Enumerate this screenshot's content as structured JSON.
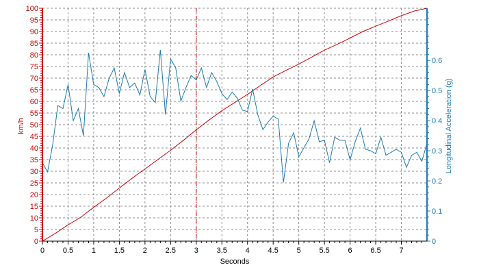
{
  "chart_data": {
    "type": "line",
    "xlabel": "Seconds",
    "ylabel_left": "km/h",
    "ylabel_right": "Longitudinal Acceleration (g)",
    "xlim": [
      0,
      7.5
    ],
    "ylim_left": [
      0,
      100
    ],
    "ylim_right": [
      0,
      0.7733
    ],
    "grid": true,
    "marker_x": 3,
    "x_ticks": [
      "0",
      "0.5",
      "1",
      "1.5",
      "2",
      "2.5",
      "3",
      "3.5",
      "4",
      "4.5",
      "5",
      "5.5",
      "6",
      "6.5",
      "7"
    ],
    "y_ticks_left": [
      "0",
      "5",
      "10",
      "15",
      "20",
      "25",
      "30",
      "35",
      "40",
      "45",
      "50",
      "55",
      "60",
      "65",
      "70",
      "75",
      "80",
      "85",
      "90",
      "95",
      "100"
    ],
    "y_ticks_right": [
      "0",
      "0.1",
      "0.2",
      "0.3",
      "0.4",
      "0.5",
      "0.6"
    ],
    "colors": {
      "left_axis": "#cc0000",
      "right_axis": "#1a7ab0",
      "speed_line": "#cc0000",
      "accel_line": "#1a7ab0",
      "grid": "#8c8c8c",
      "marker": "#cc0000"
    },
    "series": [
      {
        "axis": "left",
        "x": [
          0,
          0.25,
          0.5,
          0.75,
          1,
          1.25,
          1.5,
          1.75,
          2,
          2.25,
          2.5,
          2.75,
          3,
          3.25,
          3.5,
          3.75,
          4,
          4.25,
          4.5,
          4.75,
          5,
          5.25,
          5.5,
          5.75,
          6,
          6.25,
          6.5,
          6.75,
          7,
          7.25,
          7.5
        ],
        "values": [
          0,
          3.3,
          7,
          10.3,
          14.5,
          18.5,
          22.8,
          27,
          31,
          35,
          39,
          43.3,
          47.8,
          52,
          56,
          59.5,
          63,
          66.8,
          70.5,
          73.3,
          76,
          79,
          82,
          84.5,
          87.2,
          90,
          92.3,
          94.5,
          96.8,
          98.8,
          100.5
        ]
      },
      {
        "axis": "right",
        "x": [
          0,
          0.1,
          0.2,
          0.3,
          0.4,
          0.5,
          0.6,
          0.7,
          0.8,
          0.9,
          1.0,
          1.1,
          1.2,
          1.3,
          1.4,
          1.5,
          1.6,
          1.7,
          1.8,
          1.9,
          2.0,
          2.1,
          2.2,
          2.3,
          2.4,
          2.5,
          2.6,
          2.7,
          2.8,
          2.9,
          3.0,
          3.1,
          3.2,
          3.3,
          3.4,
          3.5,
          3.6,
          3.7,
          3.8,
          3.9,
          4.0,
          4.1,
          4.2,
          4.3,
          4.4,
          4.5,
          4.6,
          4.7,
          4.8,
          4.9,
          5.0,
          5.1,
          5.2,
          5.3,
          5.4,
          5.5,
          5.6,
          5.7,
          5.8,
          5.9,
          6.0,
          6.1,
          6.2,
          6.3,
          6.4,
          6.5,
          6.6,
          6.7,
          6.8,
          6.9,
          7.0,
          7.1,
          7.2,
          7.3,
          7.4,
          7.5
        ],
        "values": [
          0.26,
          0.23,
          0.32,
          0.45,
          0.44,
          0.52,
          0.4,
          0.44,
          0.35,
          0.625,
          0.52,
          0.51,
          0.48,
          0.54,
          0.575,
          0.49,
          0.56,
          0.51,
          0.525,
          0.485,
          0.57,
          0.48,
          0.46,
          0.635,
          0.42,
          0.605,
          0.575,
          0.465,
          0.51,
          0.55,
          0.535,
          0.575,
          0.51,
          0.56,
          0.53,
          0.49,
          0.47,
          0.495,
          0.475,
          0.435,
          0.43,
          0.505,
          0.42,
          0.37,
          0.395,
          0.415,
          0.405,
          0.195,
          0.325,
          0.36,
          0.28,
          0.31,
          0.34,
          0.4,
          0.33,
          0.335,
          0.26,
          0.345,
          0.335,
          0.335,
          0.27,
          0.33,
          0.375,
          0.305,
          0.3,
          0.29,
          0.345,
          0.285,
          0.295,
          0.305,
          0.295,
          0.245,
          0.285,
          0.295,
          0.265,
          0.325
        ]
      }
    ]
  }
}
